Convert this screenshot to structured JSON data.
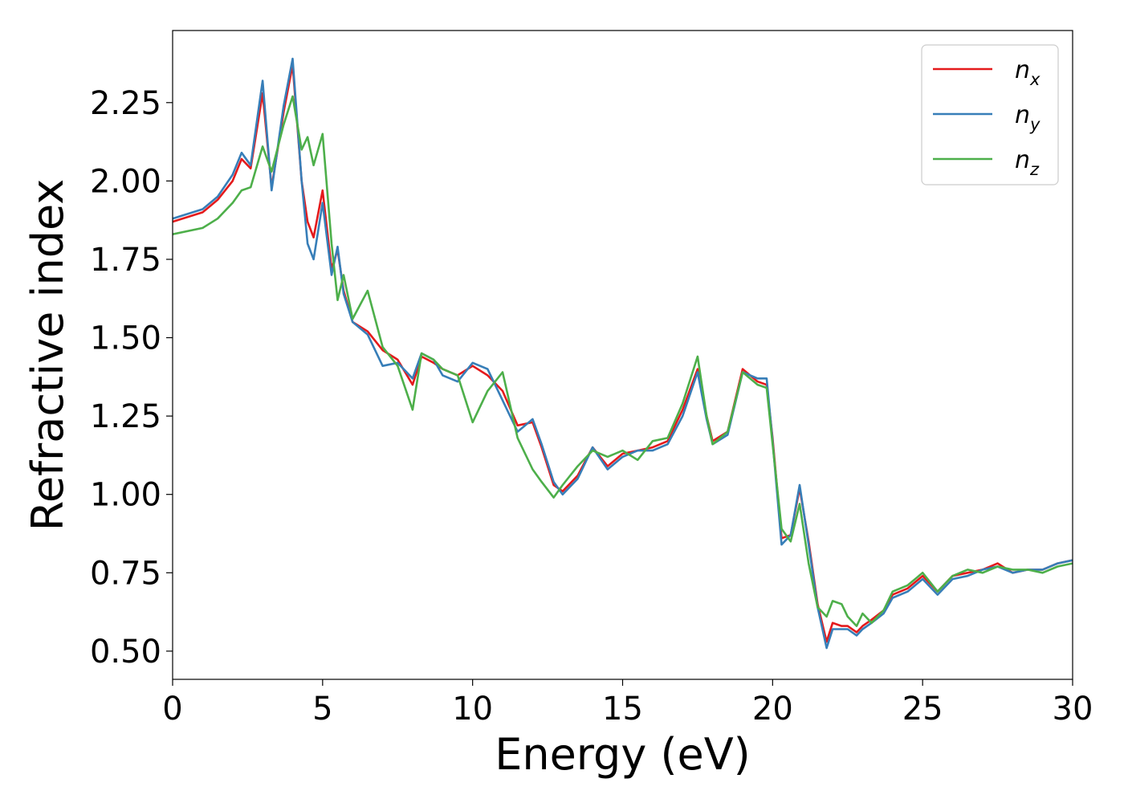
{
  "chart_data": {
    "type": "line",
    "xlabel": "Energy (eV)",
    "ylabel": "Refractive index",
    "xlim": [
      0,
      30
    ],
    "ylim": [
      0.41,
      2.48
    ],
    "xticks": [
      0,
      5,
      10,
      15,
      20,
      25,
      30
    ],
    "yticks": [
      0.5,
      0.75,
      1.0,
      1.25,
      1.5,
      1.75,
      2.0,
      2.25
    ],
    "ytick_format": 2,
    "grid": false,
    "legend_position": "top-right",
    "series": [
      {
        "name": "n_x",
        "label_base": "n",
        "label_sub": "x",
        "color": "#e41a1c",
        "x": [
          0,
          1,
          1.5,
          2,
          2.3,
          2.6,
          3.0,
          3.3,
          3.7,
          4.0,
          4.3,
          4.5,
          4.7,
          5.0,
          5.3,
          5.5,
          5.7,
          6.0,
          6.5,
          7.0,
          7.5,
          8.0,
          8.3,
          8.7,
          9.0,
          9.5,
          10.0,
          10.5,
          11.0,
          11.5,
          12.0,
          12.3,
          12.7,
          13.0,
          13.5,
          14.0,
          14.5,
          15.0,
          15.5,
          16.0,
          16.5,
          17.0,
          17.5,
          17.8,
          18.0,
          18.5,
          19.0,
          19.5,
          19.8,
          20.0,
          20.3,
          20.6,
          20.9,
          21.2,
          21.5,
          21.8,
          22.0,
          22.3,
          22.5,
          22.8,
          23.0,
          23.3,
          23.7,
          24.0,
          24.5,
          25.0,
          25.5,
          26.0,
          26.5,
          27.0,
          27.5,
          28.0,
          28.5,
          29.0,
          29.5,
          30.0
        ],
        "y": [
          1.87,
          1.9,
          1.94,
          2.0,
          2.07,
          2.04,
          2.28,
          1.98,
          2.22,
          2.37,
          2.0,
          1.87,
          1.82,
          1.97,
          1.72,
          1.78,
          1.65,
          1.55,
          1.52,
          1.46,
          1.43,
          1.35,
          1.44,
          1.42,
          1.4,
          1.38,
          1.41,
          1.38,
          1.33,
          1.22,
          1.23,
          1.15,
          1.03,
          1.01,
          1.06,
          1.15,
          1.09,
          1.13,
          1.14,
          1.15,
          1.17,
          1.27,
          1.4,
          1.25,
          1.17,
          1.2,
          1.4,
          1.36,
          1.35,
          1.18,
          0.86,
          0.87,
          1.02,
          0.85,
          0.65,
          0.53,
          0.59,
          0.58,
          0.58,
          0.56,
          0.58,
          0.6,
          0.63,
          0.68,
          0.7,
          0.74,
          0.69,
          0.74,
          0.75,
          0.76,
          0.78,
          0.75,
          0.76,
          0.76,
          0.78,
          0.79
        ]
      },
      {
        "name": "n_y",
        "label_base": "n",
        "label_sub": "y",
        "color": "#377eb8",
        "x": [
          0,
          1,
          1.5,
          2,
          2.3,
          2.6,
          3.0,
          3.3,
          3.7,
          4.0,
          4.3,
          4.5,
          4.7,
          5.0,
          5.3,
          5.5,
          5.7,
          6.0,
          6.5,
          7.0,
          7.5,
          8.0,
          8.3,
          8.7,
          9.0,
          9.5,
          10.0,
          10.5,
          11.0,
          11.5,
          12.0,
          12.3,
          12.7,
          13.0,
          13.5,
          14.0,
          14.5,
          15.0,
          15.5,
          16.0,
          16.5,
          17.0,
          17.5,
          17.8,
          18.0,
          18.5,
          19.0,
          19.5,
          19.8,
          20.0,
          20.3,
          20.6,
          20.9,
          21.2,
          21.5,
          21.8,
          22.0,
          22.3,
          22.5,
          22.8,
          23.0,
          23.3,
          23.7,
          24.0,
          24.5,
          25.0,
          25.5,
          26.0,
          26.5,
          27.0,
          27.5,
          28.0,
          28.5,
          29.0,
          29.5,
          30.0
        ],
        "y": [
          1.88,
          1.91,
          1.95,
          2.02,
          2.09,
          2.05,
          2.32,
          1.97,
          2.24,
          2.39,
          2.0,
          1.8,
          1.75,
          1.93,
          1.7,
          1.79,
          1.64,
          1.55,
          1.51,
          1.41,
          1.42,
          1.37,
          1.45,
          1.43,
          1.38,
          1.36,
          1.42,
          1.4,
          1.3,
          1.2,
          1.24,
          1.16,
          1.04,
          1.0,
          1.05,
          1.15,
          1.08,
          1.12,
          1.14,
          1.14,
          1.16,
          1.25,
          1.39,
          1.24,
          1.16,
          1.19,
          1.39,
          1.37,
          1.37,
          1.17,
          0.84,
          0.87,
          1.03,
          0.84,
          0.64,
          0.51,
          0.57,
          0.57,
          0.57,
          0.55,
          0.57,
          0.59,
          0.62,
          0.67,
          0.69,
          0.73,
          0.68,
          0.73,
          0.74,
          0.76,
          0.77,
          0.75,
          0.76,
          0.76,
          0.78,
          0.79
        ]
      },
      {
        "name": "n_z",
        "label_base": "n",
        "label_sub": "z",
        "color": "#4daf4a",
        "x": [
          0,
          1,
          1.5,
          2,
          2.3,
          2.6,
          3.0,
          3.3,
          3.7,
          4.0,
          4.3,
          4.5,
          4.7,
          5.0,
          5.3,
          5.5,
          5.7,
          6.0,
          6.5,
          7.0,
          7.5,
          8.0,
          8.3,
          8.7,
          9.0,
          9.5,
          10.0,
          10.5,
          11.0,
          11.5,
          12.0,
          12.3,
          12.7,
          13.0,
          13.5,
          14.0,
          14.5,
          15.0,
          15.5,
          16.0,
          16.5,
          17.0,
          17.5,
          17.8,
          18.0,
          18.5,
          19.0,
          19.5,
          19.8,
          20.0,
          20.3,
          20.6,
          20.9,
          21.2,
          21.5,
          21.8,
          22.0,
          22.3,
          22.5,
          22.8,
          23.0,
          23.3,
          23.7,
          24.0,
          24.5,
          25.0,
          25.5,
          26.0,
          26.5,
          27.0,
          27.5,
          28.0,
          28.5,
          29.0,
          29.5,
          30.0
        ],
        "y": [
          1.83,
          1.85,
          1.88,
          1.93,
          1.97,
          1.98,
          2.11,
          2.03,
          2.18,
          2.27,
          2.1,
          2.14,
          2.05,
          2.15,
          1.8,
          1.62,
          1.7,
          1.56,
          1.65,
          1.47,
          1.41,
          1.27,
          1.45,
          1.43,
          1.4,
          1.38,
          1.23,
          1.33,
          1.39,
          1.18,
          1.08,
          1.04,
          0.99,
          1.03,
          1.09,
          1.14,
          1.12,
          1.14,
          1.11,
          1.17,
          1.18,
          1.29,
          1.44,
          1.25,
          1.16,
          1.2,
          1.39,
          1.35,
          1.34,
          1.16,
          0.89,
          0.85,
          0.97,
          0.78,
          0.64,
          0.61,
          0.66,
          0.65,
          0.61,
          0.58,
          0.62,
          0.59,
          0.63,
          0.69,
          0.71,
          0.75,
          0.69,
          0.74,
          0.76,
          0.75,
          0.77,
          0.76,
          0.76,
          0.75,
          0.77,
          0.78
        ]
      }
    ]
  }
}
